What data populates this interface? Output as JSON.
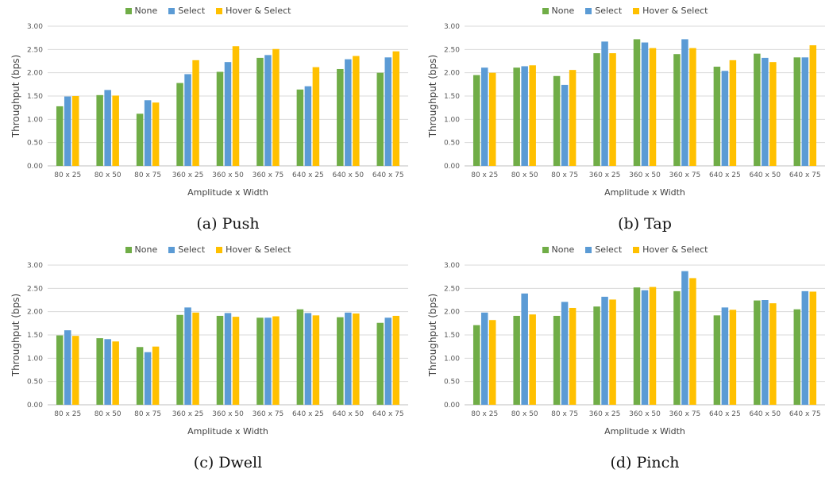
{
  "colors": {
    "None": "#70ad47",
    "Select": "#5b9bd5",
    "Hover & Select": "#ffc000",
    "grid": "#d9d9d9",
    "axis": "#bfbfbf"
  },
  "legend": [
    "None",
    "Select",
    "Hover & Select"
  ],
  "chart_data": [
    {
      "type": "bar",
      "caption": "(a) Push",
      "xlabel": "Amplitude x Width",
      "ylabel": "Throughput (bps)",
      "ylim": [
        0,
        3
      ],
      "yticks": [
        "0.00",
        "0.50",
        "1.00",
        "1.50",
        "2.00",
        "2.50",
        "3.00"
      ],
      "categories": [
        "80 x 25",
        "80 x 50",
        "80 x 75",
        "360 x 25",
        "360 x 50",
        "360 x 75",
        "640 x 25",
        "640 x 50",
        "640 x 75"
      ],
      "series": [
        {
          "name": "None",
          "values": [
            1.28,
            1.52,
            1.12,
            1.78,
            2.02,
            2.32,
            1.64,
            2.08,
            2.0
          ]
        },
        {
          "name": "Select",
          "values": [
            1.49,
            1.63,
            1.41,
            1.97,
            2.23,
            2.38,
            1.71,
            2.29,
            2.33
          ]
        },
        {
          "name": "Hover & Select",
          "values": [
            1.5,
            1.51,
            1.36,
            2.27,
            2.57,
            2.51,
            2.12,
            2.36,
            2.46
          ]
        }
      ]
    },
    {
      "type": "bar",
      "caption": "(b) Tap",
      "xlabel": "Amplitude x Width",
      "ylabel": "Throughput (bps)",
      "ylim": [
        0,
        3
      ],
      "yticks": [
        "0.00",
        "0.50",
        "1.00",
        "1.50",
        "2.00",
        "2.50",
        "3.00"
      ],
      "categories": [
        "80 x 25",
        "80 x 50",
        "80 x 75",
        "360 x 25",
        "360 x 50",
        "360 x 75",
        "640 x 25",
        "640 x 50",
        "640 x 75"
      ],
      "series": [
        {
          "name": "None",
          "values": [
            1.95,
            2.11,
            1.93,
            2.42,
            2.72,
            2.4,
            2.13,
            2.41,
            2.33
          ]
        },
        {
          "name": "Select",
          "values": [
            2.11,
            2.14,
            1.74,
            2.67,
            2.65,
            2.72,
            2.04,
            2.32,
            2.33
          ]
        },
        {
          "name": "Hover & Select",
          "values": [
            2.0,
            2.16,
            2.06,
            2.42,
            2.53,
            2.53,
            2.27,
            2.23,
            2.59
          ]
        }
      ]
    },
    {
      "type": "bar",
      "caption": "(c) Dwell",
      "xlabel": "Amplitude x Width",
      "ylabel": "Throughput (bps)",
      "ylim": [
        0,
        3
      ],
      "yticks": [
        "0.00",
        "0.50",
        "1.00",
        "1.50",
        "2.00",
        "2.50",
        "3.00"
      ],
      "categories": [
        "80 x 25",
        "80 x 50",
        "80 x 75",
        "360 x 25",
        "360 x 50",
        "360 x 75",
        "640 x 25",
        "640 x 50",
        "640 x 75"
      ],
      "series": [
        {
          "name": "None",
          "values": [
            1.49,
            1.43,
            1.24,
            1.93,
            1.91,
            1.87,
            2.05,
            1.88,
            1.76
          ]
        },
        {
          "name": "Select",
          "values": [
            1.6,
            1.41,
            1.13,
            2.09,
            1.97,
            1.87,
            1.97,
            1.98,
            1.87
          ]
        },
        {
          "name": "Hover & Select",
          "values": [
            1.48,
            1.36,
            1.25,
            1.98,
            1.89,
            1.9,
            1.92,
            1.96,
            1.91
          ]
        }
      ]
    },
    {
      "type": "bar",
      "caption": "(d) Pinch",
      "xlabel": "Amplitude x Width",
      "ylabel": "Throughput (bps)",
      "ylim": [
        0,
        3
      ],
      "yticks": [
        "0.00",
        "0.50",
        "1.00",
        "1.50",
        "2.00",
        "2.50",
        "3.00"
      ],
      "categories": [
        "80 x 25",
        "80 x 50",
        "80 x 75",
        "360 x 25",
        "360 x 50",
        "360 x 75",
        "640 x 25",
        "640 x 50",
        "640 x 75"
      ],
      "series": [
        {
          "name": "None",
          "values": [
            1.71,
            1.91,
            1.91,
            2.11,
            2.52,
            2.44,
            1.92,
            2.24,
            2.05
          ]
        },
        {
          "name": "Select",
          "values": [
            1.98,
            2.39,
            2.21,
            2.32,
            2.46,
            2.87,
            2.09,
            2.25,
            2.44
          ]
        },
        {
          "name": "Hover & Select",
          "values": [
            1.82,
            1.94,
            2.08,
            2.26,
            2.53,
            2.72,
            2.04,
            2.18,
            2.43
          ]
        }
      ]
    }
  ]
}
